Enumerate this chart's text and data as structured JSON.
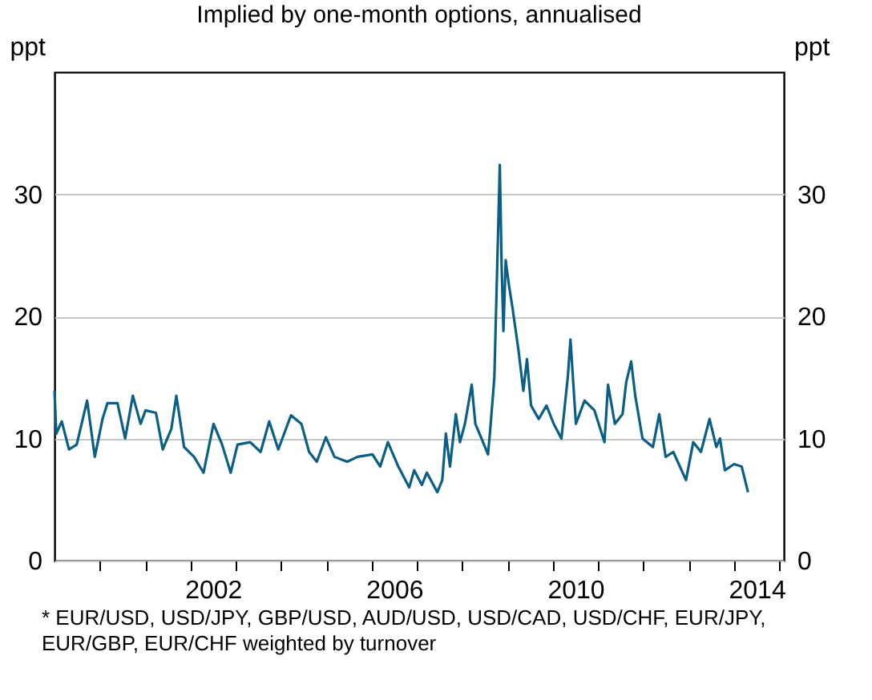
{
  "chart_data": {
    "type": "line",
    "title": "Implied by one-month options, annualised",
    "ylabel": "ppt",
    "y2label": "ppt",
    "x": [
      1999.0,
      1999.04,
      1999.16,
      1999.32,
      1999.49,
      1999.72,
      1999.89,
      2000.06,
      2000.17,
      2000.39,
      2000.56,
      2000.73,
      2000.9,
      2001.01,
      2001.24,
      2001.39,
      2001.58,
      2001.69,
      2001.86,
      2002.08,
      2002.29,
      2002.51,
      2002.7,
      2002.89,
      2003.04,
      2003.32,
      2003.55,
      2003.74,
      2003.94,
      2004.22,
      2004.45,
      2004.62,
      2004.79,
      2004.99,
      2005.18,
      2005.46,
      2005.69,
      2006.02,
      2006.19,
      2006.36,
      2006.59,
      2006.83,
      2006.94,
      2007.11,
      2007.22,
      2007.45,
      2007.56,
      2007.64,
      2007.73,
      2007.86,
      2007.95,
      2008.06,
      2008.21,
      2008.29,
      2008.46,
      2008.57,
      2008.62,
      2008.71,
      2008.79,
      2008.83,
      2008.87,
      2008.91,
      2008.96,
      2009.03,
      2009.11,
      2009.24,
      2009.35,
      2009.43,
      2009.52,
      2009.69,
      2009.86,
      2010.02,
      2010.19,
      2010.33,
      2010.39,
      2010.51,
      2010.7,
      2010.92,
      2011.14,
      2011.22,
      2011.37,
      2011.54,
      2011.62,
      2011.73,
      2011.82,
      2011.98,
      2012.21,
      2012.35,
      2012.49,
      2012.66,
      2012.94,
      2013.1,
      2013.27,
      2013.46,
      2013.61,
      2013.69,
      2013.8,
      2014.0,
      2014.17,
      2014.31
    ],
    "series": [
      {
        "color": "#0b5f86",
        "values": [
          13.9,
          10.4,
          11.4,
          9.1,
          9.5,
          13.1,
          8.5,
          11.6,
          12.9,
          12.9,
          10.0,
          13.5,
          11.2,
          12.3,
          12.1,
          9.1,
          10.8,
          13.5,
          9.3,
          8.5,
          7.2,
          11.2,
          9.5,
          7.2,
          9.5,
          9.7,
          8.9,
          11.4,
          9.1,
          11.9,
          11.2,
          8.9,
          8.1,
          10.1,
          8.5,
          8.1,
          8.5,
          8.7,
          7.7,
          9.7,
          7.7,
          6.0,
          7.4,
          6.2,
          7.2,
          5.6,
          6.6,
          10.4,
          7.7,
          12.0,
          9.7,
          11.2,
          14.4,
          11.2,
          9.7,
          8.7,
          10.8,
          15.0,
          26.6,
          32.4,
          24.2,
          18.8,
          24.6,
          22.6,
          20.7,
          17.3,
          13.9,
          16.5,
          12.7,
          11.6,
          12.7,
          11.2,
          10.0,
          15.0,
          18.1,
          11.2,
          13.1,
          12.3,
          9.7,
          14.4,
          11.2,
          12.0,
          14.6,
          16.3,
          13.5,
          10.0,
          9.3,
          12.0,
          8.5,
          8.9,
          6.6,
          9.7,
          8.9,
          11.6,
          9.3,
          10.0,
          7.4,
          7.9,
          7.7,
          5.6
        ]
      }
    ],
    "xlim": [
      1999.0,
      2015.1
    ],
    "xticks": [
      {
        "value": 2000,
        "label": null
      },
      {
        "value": 2001,
        "label": null
      },
      {
        "value": 2002,
        "label": null
      },
      {
        "value": 2003,
        "label": null
      },
      {
        "value": 2004,
        "label": null
      },
      {
        "value": 2005,
        "label": null
      },
      {
        "value": 2006,
        "label": null
      },
      {
        "value": 2007,
        "label": null
      },
      {
        "value": 2008,
        "label": null
      },
      {
        "value": 2009,
        "label": null
      },
      {
        "value": 2010,
        "label": null
      },
      {
        "value": 2011,
        "label": null
      },
      {
        "value": 2012,
        "label": null
      },
      {
        "value": 2013,
        "label": null
      },
      {
        "value": 2014,
        "label": null
      },
      {
        "value": 2015,
        "label": null
      },
      {
        "value": 2002.5,
        "label": "2002"
      },
      {
        "value": 2006.5,
        "label": "2006"
      },
      {
        "value": 2010.5,
        "label": "2010"
      },
      {
        "value": 2014.5,
        "label": "2014"
      }
    ],
    "ylim": [
      0,
      40
    ],
    "yticks": [
      0,
      10,
      20,
      30
    ],
    "y2lim": [
      0,
      40
    ],
    "y2ticks": [
      0,
      10,
      20,
      30
    ],
    "grid": "y",
    "line_style": "solid",
    "marker": "none",
    "annotations": [
      "* EUR/USD, USD/JPY, GBP/USD, AUD/USD, USD/CAD, USD/CHF, EUR/JPY, EUR/GBP, EUR/CHF weighted by turnover"
    ]
  }
}
